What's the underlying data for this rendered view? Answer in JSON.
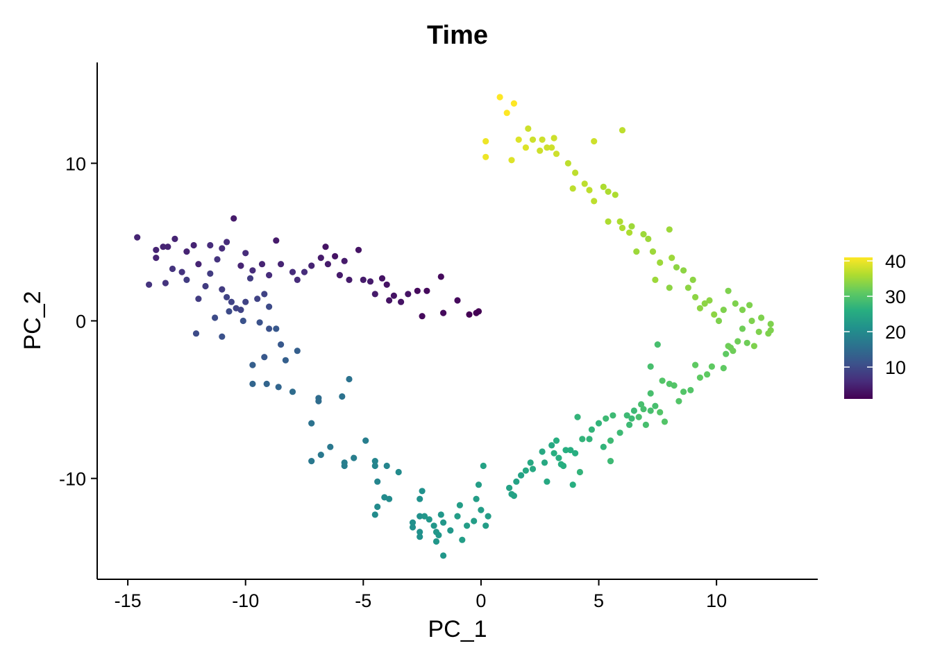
{
  "chart_data": {
    "type": "scatter",
    "title": "Time",
    "xlabel": "PC_1",
    "ylabel": "PC_2",
    "xlim": [
      -16.3,
      14.3
    ],
    "ylim": [
      -16.4,
      16.4
    ],
    "x_ticks": [
      -15,
      -10,
      -5,
      0,
      5,
      10
    ],
    "x_tick_labels": [
      "-15",
      "-10",
      "-5",
      "0",
      "5",
      "10"
    ],
    "y_ticks": [
      -10,
      0,
      10
    ],
    "y_tick_labels": [
      "-10",
      "0",
      "10"
    ],
    "grid": false,
    "colormap": "viridis",
    "color_range": [
      1,
      41
    ],
    "legend": {
      "placement": "right",
      "ticks": [
        10,
        20,
        30,
        40
      ],
      "tick_labels": [
        "10",
        "20",
        "30",
        "40"
      ]
    },
    "points": [
      [
        -14.6,
        5.3,
        5
      ],
      [
        -13.8,
        4.5,
        5
      ],
      [
        -13.8,
        4.0,
        5
      ],
      [
        -13.5,
        4.7,
        5
      ],
      [
        -13.3,
        4.7,
        5
      ],
      [
        -13.0,
        5.2,
        5
      ],
      [
        -12.5,
        4.4,
        5
      ],
      [
        -12.2,
        4.8,
        5
      ],
      [
        -12.0,
        3.6,
        5
      ],
      [
        -11.5,
        4.8,
        6
      ],
      [
        -11.0,
        4.6,
        6
      ],
      [
        -10.8,
        5.0,
        6
      ],
      [
        -10.5,
        6.5,
        4
      ],
      [
        -10.2,
        3.5,
        5
      ],
      [
        -10.0,
        4.3,
        6
      ],
      [
        -9.7,
        3.2,
        6
      ],
      [
        -9.3,
        3.6,
        5
      ],
      [
        -9.0,
        2.9,
        6
      ],
      [
        -8.7,
        5.1,
        4
      ],
      [
        -8.5,
        3.6,
        5
      ],
      [
        -8.0,
        3.1,
        6
      ],
      [
        -7.8,
        2.6,
        6
      ],
      [
        -7.5,
        3.1,
        6
      ],
      [
        -7.2,
        3.5,
        5
      ],
      [
        -6.8,
        4.0,
        4
      ],
      [
        -6.6,
        4.7,
        3
      ],
      [
        -6.5,
        3.6,
        4
      ],
      [
        -6.2,
        4.1,
        3
      ],
      [
        -6.0,
        2.9,
        4
      ],
      [
        -5.8,
        3.8,
        4
      ],
      [
        -5.6,
        2.6,
        4
      ],
      [
        -5.2,
        4.5,
        3
      ],
      [
        -5.0,
        2.6,
        4
      ],
      [
        -4.7,
        2.5,
        4
      ],
      [
        -4.5,
        1.7,
        4
      ],
      [
        -4.2,
        2.7,
        3
      ],
      [
        -4.0,
        2.3,
        3
      ],
      [
        -3.9,
        1.3,
        3
      ],
      [
        -3.7,
        1.6,
        3
      ],
      [
        -3.4,
        1.2,
        3
      ],
      [
        -3.1,
        1.7,
        3
      ],
      [
        -2.7,
        1.9,
        2
      ],
      [
        -2.5,
        0.3,
        2
      ],
      [
        -2.3,
        1.9,
        2
      ],
      [
        -1.7,
        2.8,
        2
      ],
      [
        -1.6,
        0.5,
        2
      ],
      [
        -1.0,
        1.3,
        2
      ],
      [
        -0.5,
        0.4,
        1
      ],
      [
        -0.2,
        0.5,
        1
      ],
      [
        -0.1,
        0.6,
        1
      ],
      [
        -14.1,
        2.3,
        7
      ],
      [
        -13.4,
        2.4,
        7
      ],
      [
        -13.1,
        3.3,
        7
      ],
      [
        -12.7,
        3.1,
        7
      ],
      [
        -12.5,
        2.6,
        8
      ],
      [
        -12.0,
        1.4,
        8
      ],
      [
        -11.7,
        2.2,
        8
      ],
      [
        -11.5,
        3.0,
        8
      ],
      [
        -11.2,
        3.9,
        7
      ],
      [
        -11.0,
        2.0,
        8
      ],
      [
        -10.8,
        1.5,
        9
      ],
      [
        -10.6,
        1.2,
        9
      ],
      [
        -10.4,
        0.8,
        9
      ],
      [
        -10.2,
        0.7,
        9
      ],
      [
        -10.0,
        1.2,
        9
      ],
      [
        -9.8,
        2.7,
        8
      ],
      [
        -9.5,
        1.4,
        9
      ],
      [
        -9.2,
        1.7,
        9
      ],
      [
        -9.0,
        0.9,
        10
      ],
      [
        -11.3,
        0.2,
        10
      ],
      [
        -12.1,
        -0.8,
        10
      ],
      [
        -11.0,
        -1.0,
        11
      ],
      [
        -10.7,
        0.6,
        10
      ],
      [
        -10.1,
        0.0,
        11
      ],
      [
        -9.4,
        -0.1,
        11
      ],
      [
        -9.0,
        -0.5,
        11
      ],
      [
        -8.7,
        -0.5,
        12
      ],
      [
        -9.7,
        -2.8,
        13
      ],
      [
        -9.2,
        -2.3,
        12
      ],
      [
        -8.5,
        -1.5,
        12
      ],
      [
        -8.3,
        -2.5,
        13
      ],
      [
        -7.8,
        -1.9,
        13
      ],
      [
        -9.7,
        -4.0,
        14
      ],
      [
        -9.1,
        -4.0,
        14
      ],
      [
        -8.6,
        -4.2,
        14
      ],
      [
        -8.0,
        -4.5,
        15
      ],
      [
        -6.9,
        -4.9,
        15
      ],
      [
        -6.9,
        -5.1,
        15
      ],
      [
        -5.9,
        -4.8,
        16
      ],
      [
        -5.6,
        -3.7,
        16
      ],
      [
        -7.2,
        -6.5,
        16
      ],
      [
        -7.2,
        -8.9,
        17
      ],
      [
        -6.8,
        -8.5,
        17
      ],
      [
        -6.4,
        -8.0,
        17
      ],
      [
        -5.8,
        -9.0,
        18
      ],
      [
        -5.8,
        -9.2,
        18
      ],
      [
        -5.4,
        -8.7,
        18
      ],
      [
        -4.9,
        -7.6,
        18
      ],
      [
        -4.5,
        -8.9,
        19
      ],
      [
        -4.5,
        -9.2,
        19
      ],
      [
        -4.0,
        -9.2,
        19
      ],
      [
        -4.4,
        -10.2,
        19
      ],
      [
        -3.5,
        -9.6,
        20
      ],
      [
        -4.1,
        -11.2,
        20
      ],
      [
        -3.9,
        -11.3,
        20
      ],
      [
        -4.5,
        -12.3,
        20
      ],
      [
        -4.4,
        -11.8,
        20
      ],
      [
        -2.9,
        -12.8,
        21
      ],
      [
        -2.9,
        -13.1,
        21
      ],
      [
        -2.6,
        -13.4,
        21
      ],
      [
        -2.6,
        -13.7,
        21
      ],
      [
        -2.6,
        -12.4,
        21
      ],
      [
        -2.4,
        -12.4,
        22
      ],
      [
        -2.6,
        -11.3,
        21
      ],
      [
        -2.5,
        -10.8,
        21
      ],
      [
        -2.2,
        -12.6,
        22
      ],
      [
        -2.0,
        -13.0,
        22
      ],
      [
        -1.7,
        -12.3,
        22
      ],
      [
        -1.6,
        -12.8,
        22
      ],
      [
        -1.8,
        -13.6,
        22
      ],
      [
        -1.9,
        -13.4,
        22
      ],
      [
        -1.9,
        -14.0,
        22
      ],
      [
        -1.6,
        -14.9,
        22
      ],
      [
        -1.3,
        -13.3,
        22
      ],
      [
        -1.0,
        -12.4,
        23
      ],
      [
        -0.9,
        -11.7,
        23
      ],
      [
        -0.8,
        -13.9,
        23
      ],
      [
        -0.6,
        -13.0,
        23
      ],
      [
        -0.3,
        -12.7,
        23
      ],
      [
        -0.2,
        -11.3,
        23
      ],
      [
        -0.1,
        -10.4,
        23
      ],
      [
        0.2,
        -13.0,
        23
      ],
      [
        0.3,
        -12.4,
        23
      ],
      [
        0.0,
        -12.0,
        23
      ],
      [
        0.1,
        -9.2,
        24
      ],
      [
        1.2,
        -10.6,
        24
      ],
      [
        1.4,
        -11.1,
        24
      ],
      [
        1.3,
        -11.0,
        24
      ],
      [
        1.5,
        -10.2,
        24
      ],
      [
        1.7,
        -9.8,
        24
      ],
      [
        1.9,
        -9.5,
        25
      ],
      [
        2.1,
        -9.0,
        25
      ],
      [
        2.2,
        -9.4,
        25
      ],
      [
        2.6,
        -8.3,
        25
      ],
      [
        2.7,
        -9.0,
        25
      ],
      [
        2.8,
        -10.2,
        25
      ],
      [
        3.0,
        -7.9,
        25
      ],
      [
        3.2,
        -7.6,
        26
      ],
      [
        3.1,
        -8.4,
        26
      ],
      [
        3.3,
        -8.7,
        26
      ],
      [
        3.4,
        -9.1,
        26
      ],
      [
        3.5,
        -9.2,
        26
      ],
      [
        3.6,
        -8.2,
        26
      ],
      [
        3.9,
        -10.4,
        26
      ],
      [
        3.8,
        -8.2,
        26
      ],
      [
        4.0,
        -8.4,
        26
      ],
      [
        4.2,
        -9.6,
        27
      ],
      [
        4.3,
        -7.5,
        27
      ],
      [
        4.1,
        -6.1,
        27
      ],
      [
        4.6,
        -7.5,
        27
      ],
      [
        4.7,
        -6.9,
        27
      ],
      [
        5.0,
        -6.5,
        27
      ],
      [
        5.2,
        -8.0,
        27
      ],
      [
        5.3,
        -6.2,
        28
      ],
      [
        5.5,
        -7.6,
        28
      ],
      [
        5.5,
        -8.9,
        28
      ],
      [
        5.6,
        -6.0,
        28
      ],
      [
        5.9,
        -7.1,
        28
      ],
      [
        6.3,
        -6.6,
        28
      ],
      [
        6.2,
        -6.0,
        28
      ],
      [
        6.4,
        -6.2,
        28
      ],
      [
        6.5,
        -5.7,
        28
      ],
      [
        6.7,
        -6.1,
        29
      ],
      [
        6.8,
        -5.3,
        29
      ],
      [
        6.9,
        -5.6,
        29
      ],
      [
        7.0,
        -6.6,
        29
      ],
      [
        7.2,
        -5.7,
        29
      ],
      [
        7.4,
        -5.4,
        29
      ],
      [
        7.2,
        -4.6,
        29
      ],
      [
        7.2,
        -2.9,
        29
      ],
      [
        7.5,
        -1.5,
        29
      ],
      [
        7.7,
        -3.8,
        30
      ],
      [
        7.6,
        -5.8,
        30
      ],
      [
        7.8,
        -6.4,
        30
      ],
      [
        8.0,
        -4.0,
        30
      ],
      [
        8.2,
        -4.1,
        30
      ],
      [
        8.6,
        -4.5,
        30
      ],
      [
        8.4,
        -5.1,
        30
      ],
      [
        8.9,
        -4.4,
        30
      ],
      [
        9.1,
        -2.8,
        31
      ],
      [
        9.3,
        -3.6,
        31
      ],
      [
        9.6,
        -3.4,
        31
      ],
      [
        9.8,
        -2.9,
        31
      ],
      [
        10.3,
        -3.0,
        31
      ],
      [
        10.4,
        -2.1,
        31
      ],
      [
        10.5,
        -1.6,
        32
      ],
      [
        10.6,
        -1.7,
        32
      ],
      [
        10.7,
        -1.9,
        32
      ],
      [
        10.9,
        -1.3,
        32
      ],
      [
        11.1,
        -0.5,
        32
      ],
      [
        11.3,
        -1.4,
        32
      ],
      [
        11.6,
        -1.6,
        33
      ],
      [
        11.8,
        -0.7,
        33
      ],
      [
        12.2,
        -0.8,
        33
      ],
      [
        12.3,
        -0.6,
        33
      ],
      [
        12.3,
        -0.2,
        33
      ],
      [
        11.9,
        0.2,
        33
      ],
      [
        11.5,
        0.0,
        33
      ],
      [
        11.4,
        1.0,
        33
      ],
      [
        11.1,
        0.7,
        33
      ],
      [
        10.8,
        1.1,
        33
      ],
      [
        10.5,
        1.9,
        33
      ],
      [
        10.3,
        0.7,
        33
      ],
      [
        10.1,
        0.0,
        33
      ],
      [
        9.9,
        0.4,
        34
      ],
      [
        9.7,
        1.3,
        34
      ],
      [
        9.5,
        1.1,
        34
      ],
      [
        9.3,
        0.8,
        34
      ],
      [
        9.1,
        1.5,
        34
      ],
      [
        9.0,
        2.6,
        34
      ],
      [
        8.8,
        2.1,
        34
      ],
      [
        8.6,
        3.2,
        34
      ],
      [
        8.3,
        3.4,
        34
      ],
      [
        8.0,
        2.1,
        34
      ],
      [
        8.1,
        4.0,
        35
      ],
      [
        8.0,
        5.8,
        35
      ],
      [
        7.6,
        3.7,
        35
      ],
      [
        7.4,
        2.6,
        35
      ],
      [
        7.3,
        4.4,
        35
      ],
      [
        7.1,
        5.2,
        35
      ],
      [
        6.9,
        5.5,
        35
      ],
      [
        6.6,
        4.4,
        35
      ],
      [
        6.4,
        6.0,
        35
      ],
      [
        6.3,
        5.6,
        36
      ],
      [
        6.0,
        5.9,
        36
      ],
      [
        5.9,
        6.3,
        36
      ],
      [
        5.4,
        6.3,
        36
      ],
      [
        5.7,
        8.0,
        36
      ],
      [
        5.4,
        8.2,
        36
      ],
      [
        5.2,
        8.5,
        36
      ],
      [
        4.8,
        7.6,
        37
      ],
      [
        4.6,
        8.3,
        37
      ],
      [
        4.4,
        8.7,
        37
      ],
      [
        4.0,
        9.4,
        37
      ],
      [
        3.9,
        8.4,
        37
      ],
      [
        3.7,
        10.0,
        37
      ],
      [
        3.2,
        10.6,
        38
      ],
      [
        3.0,
        11.0,
        38
      ],
      [
        3.1,
        11.6,
        38
      ],
      [
        2.8,
        11.0,
        38
      ],
      [
        2.6,
        11.5,
        38
      ],
      [
        2.5,
        10.8,
        38
      ],
      [
        2.2,
        11.5,
        38
      ],
      [
        2.0,
        12.2,
        38
      ],
      [
        1.9,
        11.0,
        39
      ],
      [
        1.6,
        11.5,
        39
      ],
      [
        1.3,
        10.2,
        39
      ],
      [
        4.8,
        11.4,
        38
      ],
      [
        6.0,
        12.1,
        37
      ],
      [
        0.2,
        10.4,
        40
      ],
      [
        0.2,
        11.4,
        40
      ],
      [
        0.8,
        14.2,
        41
      ],
      [
        1.1,
        13.2,
        41
      ],
      [
        1.4,
        13.8,
        41
      ]
    ]
  }
}
